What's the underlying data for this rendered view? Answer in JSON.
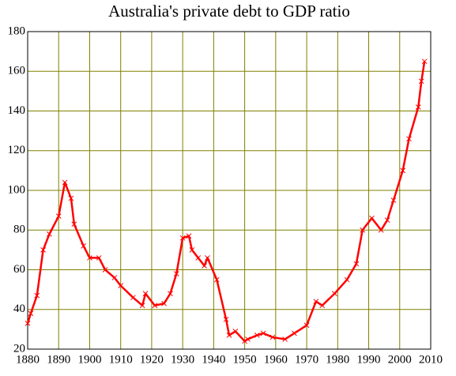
{
  "chart_data": {
    "type": "line",
    "title": "Australia's private debt to GDP ratio",
    "x": [
      1880,
      1881,
      1883,
      1885,
      1887,
      1890,
      1892,
      1894,
      1895,
      1898,
      1900,
      1903,
      1905,
      1908,
      1910,
      1914,
      1917,
      1918,
      1921,
      1924,
      1926,
      1928,
      1930,
      1932,
      1933,
      1935,
      1937,
      1938,
      1941,
      1944,
      1945,
      1947,
      1950,
      1951,
      1954,
      1956,
      1959,
      1963,
      1966,
      1970,
      1973,
      1975,
      1979,
      1983,
      1986,
      1988,
      1991,
      1994,
      1996,
      1998,
      2001,
      2003,
      2006,
      2007,
      2008
    ],
    "values": [
      33,
      38,
      47,
      70,
      78,
      87,
      104,
      96,
      83,
      72,
      66,
      66,
      60,
      56,
      52,
      46,
      42,
      48,
      42,
      43,
      48,
      58,
      76,
      77,
      70,
      66,
      62,
      66,
      55,
      35,
      27,
      29,
      24,
      25,
      27,
      28,
      26,
      25,
      28,
      32,
      44,
      42,
      48,
      55,
      63,
      80,
      86,
      80,
      85,
      95,
      110,
      126,
      142,
      155,
      165
    ],
    "color": "#ff0000",
    "xlim": [
      1880,
      2010
    ],
    "xticks": [
      1880,
      1890,
      1900,
      1910,
      1920,
      1930,
      1940,
      1950,
      1960,
      1970,
      1980,
      1990,
      2000,
      2010
    ],
    "ylim": [
      20,
      180
    ],
    "yticks": [
      20,
      40,
      60,
      80,
      100,
      120,
      140,
      160,
      180
    ],
    "grid": true,
    "grid_color": "#808000"
  }
}
